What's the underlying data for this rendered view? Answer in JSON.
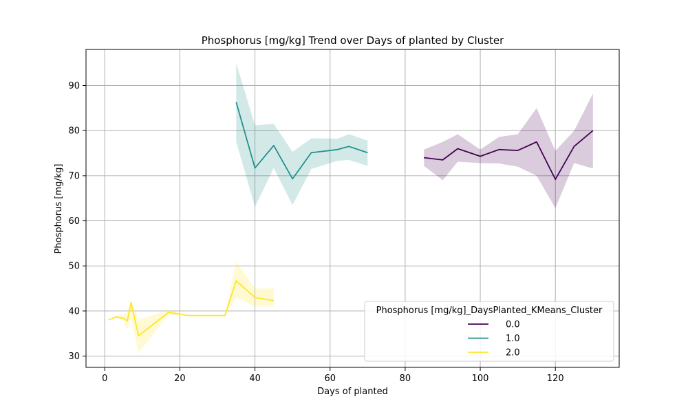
{
  "chart_data": {
    "type": "line",
    "title": "Phosphorus [mg/kg] Trend over Days of planted by Cluster",
    "xlabel": "Days of planted",
    "ylabel": "Phosphorus [mg/kg]",
    "xlim": [
      -5,
      137
    ],
    "ylim": [
      27.5,
      98
    ],
    "xticks": [
      0,
      20,
      40,
      60,
      80,
      100,
      120
    ],
    "yticks": [
      30,
      40,
      50,
      60,
      70,
      80,
      90
    ],
    "grid": true,
    "legend": {
      "title": "Phosphorus [mg/kg]_DaysPlanted_KMeans_Cluster",
      "placement": "lower-right"
    },
    "series": [
      {
        "name": "0.0",
        "color": "#440154",
        "x": [
          85,
          90,
          94,
          100,
          105,
          110,
          115,
          120,
          125,
          130
        ],
        "y": [
          74.0,
          73.5,
          76.0,
          74.3,
          75.8,
          75.6,
          77.5,
          69.2,
          76.5,
          80.0
        ],
        "lower": [
          72.2,
          69.0,
          73.1,
          72.8,
          72.7,
          72.0,
          70.0,
          62.8,
          72.8,
          71.6
        ],
        "upper": [
          75.8,
          77.5,
          79.2,
          75.8,
          78.6,
          79.2,
          85.0,
          75.5,
          80.0,
          88.2
        ]
      },
      {
        "name": "1.0",
        "color": "#21918c",
        "x": [
          35,
          40,
          45,
          50,
          55,
          62,
          65,
          70
        ],
        "y": [
          86.3,
          71.7,
          76.7,
          69.3,
          75.1,
          75.8,
          76.5,
          75.1
        ],
        "lower": [
          77.5,
          63.1,
          71.7,
          63.5,
          71.5,
          73.3,
          73.5,
          72.2
        ],
        "upper": [
          95.0,
          81.2,
          81.5,
          75.3,
          78.3,
          78.2,
          79.2,
          77.8
        ]
      },
      {
        "name": "2.0",
        "color": "#fde725",
        "x": [
          1,
          3,
          5,
          6,
          7,
          9,
          17,
          22,
          32,
          35,
          40,
          45
        ],
        "y": [
          38.0,
          38.7,
          38.4,
          37.8,
          41.9,
          34.5,
          39.7,
          39.0,
          39.0,
          46.7,
          43.0,
          42.3
        ],
        "lower": [
          38.0,
          38.4,
          37.8,
          35.8,
          38.5,
          30.7,
          39.2,
          39.0,
          39.0,
          43.0,
          41.0,
          41.0
        ],
        "upper": [
          38.0,
          39.0,
          39.2,
          39.8,
          42.2,
          38.0,
          40.3,
          39.0,
          39.0,
          51.0,
          45.0,
          45.0
        ]
      }
    ]
  }
}
